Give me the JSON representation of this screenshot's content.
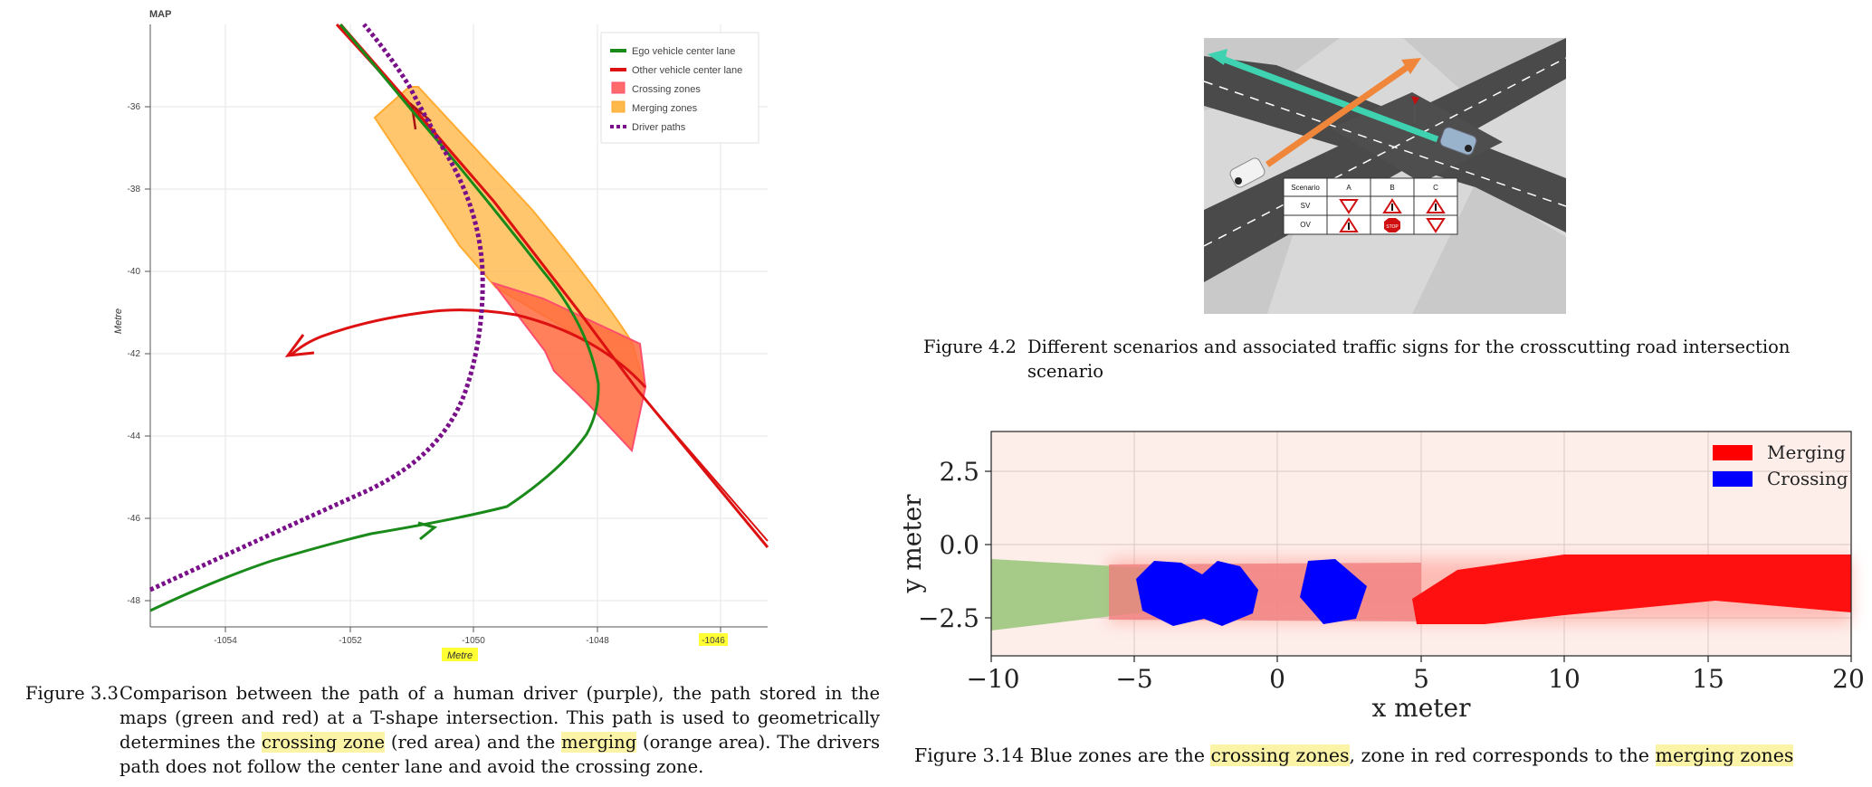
{
  "fig33": {
    "panel_title": "MAP",
    "xlabel": "Metre",
    "ylabel": "Metre",
    "xticks": [
      "-1054",
      "-1052",
      "-1050",
      "-1048",
      "-1046"
    ],
    "yticks": [
      "-36",
      "-38",
      "-40",
      "-42",
      "-44",
      "-46",
      "-48"
    ],
    "legend": [
      "Ego vehicle center lane",
      "Other vehicle center lane",
      "Crossing zones",
      "Merging zones",
      "Driver paths"
    ],
    "caption_num": "Figure 3.3",
    "caption_p1": "Comparison between the path of a human driver (purple), the path stored in the maps (green and red) at a T-shape intersection. This path is used to geometrically determines the ",
    "caption_hl1": "crossing zone",
    "caption_p2": " (red area) and the ",
    "caption_hl2": "merging",
    "caption_p3": " (orange area). The drivers path does not follow the center lane and avoid the crossing zone."
  },
  "fig42": {
    "table_headers": [
      "Scenario",
      "A",
      "B",
      "C"
    ],
    "table_rows": [
      "SV",
      "OV"
    ],
    "stop_label": "STOP",
    "caption_num": "Figure 4.2",
    "caption_text": "Different scenarios and associated traffic signs for the crosscutting road intersection scenario"
  },
  "fig314": {
    "xlabel": "x meter",
    "ylabel": "y meter",
    "xticks": [
      "−10",
      "−5",
      "0",
      "5",
      "10",
      "15",
      "20"
    ],
    "yticks": [
      "2.5",
      "0.0",
      "−2.5"
    ],
    "legend": [
      "Merging",
      "Crossing"
    ],
    "caption_num": "Figure 3.14",
    "caption_p1": "Blue zones are the ",
    "caption_hl1": "crossing zones",
    "caption_p2": ", zone in red corresponds to the ",
    "caption_hl2": "merging zones"
  },
  "chart_data": [
    {
      "type": "line",
      "title": "MAP",
      "xlabel": "Metre",
      "ylabel": "Metre",
      "xlim": [
        -1055.2,
        -1045.2
      ],
      "ylim": [
        -48.6,
        -34.0
      ],
      "series": [
        {
          "name": "Ego vehicle center lane",
          "color": "#1a8a1a",
          "points": [
            [
              -1055.2,
              -48.3
            ],
            [
              -1054,
              -47.6
            ],
            [
              -1052,
              -46.7
            ],
            [
              -1050,
              -46.0
            ],
            [
              -1048.2,
              -44.6
            ],
            [
              -1047.9,
              -42.8
            ],
            [
              -1049.5,
              -39.7
            ],
            [
              -1051.2,
              -35.8
            ],
            [
              -1052.1,
              -34.0
            ]
          ]
        },
        {
          "name": "Other vehicle center lane",
          "color": "#dd1111",
          "points": [
            [
              -1045.2,
              -46.7
            ],
            [
              -1046.7,
              -44.4
            ],
            [
              -1048.5,
              -41.4
            ],
            [
              -1050.3,
              -38.0
            ],
            [
              -1050.9,
              -36.2
            ],
            [
              -1052.1,
              -34.0
            ]
          ]
        },
        {
          "name": "Other vehicle center lane (turn)",
          "color": "#dd1111",
          "points": [
            [
              -1047.2,
              -42.6
            ],
            [
              -1048.3,
              -41.5
            ],
            [
              -1049.3,
              -41.1
            ],
            [
              -1050.5,
              -40.9
            ],
            [
              -1051.7,
              -41.0
            ],
            [
              -1052.6,
              -41.4
            ],
            [
              -1053.0,
              -42.0
            ]
          ]
        },
        {
          "name": "Driver paths",
          "color": "#7a0f8a",
          "points": [
            [
              -1055.2,
              -47.8
            ],
            [
              -1053.5,
              -46.8
            ],
            [
              -1052,
              -45.8
            ],
            [
              -1050.7,
              -44.6
            ],
            [
              -1050.3,
              -43.5
            ],
            [
              -1050.1,
              -41.5
            ],
            [
              -1050.1,
              -40.0
            ],
            [
              -1050.5,
              -38.2
            ],
            [
              -1050.9,
              -36.6
            ],
            [
              -1051.5,
              -34.8
            ],
            [
              -1051.8,
              -34.0
            ]
          ]
        }
      ],
      "zones": [
        {
          "name": "Crossing zones",
          "color": "#ff6a5e"
        },
        {
          "name": "Merging zones",
          "color": "#ffb84a"
        }
      ]
    },
    {
      "type": "area",
      "xlabel": "x meter",
      "ylabel": "y meter",
      "xlim": [
        -10,
        20
      ],
      "ylim": [
        -3.9,
        3.8
      ],
      "legend_position": "top-right",
      "series": [
        {
          "name": "Merging",
          "color": "#ff0000"
        },
        {
          "name": "Crossing",
          "color": "#0000ff"
        }
      ]
    }
  ]
}
